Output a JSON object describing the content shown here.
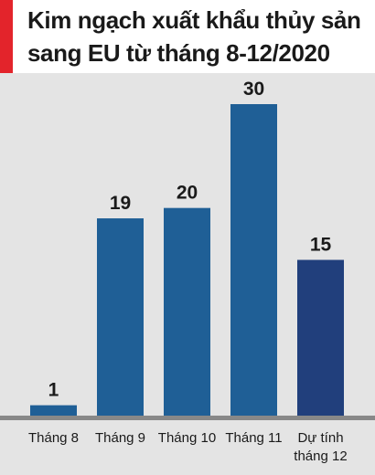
{
  "title": "Kim ngạch xuất khẩu thủy sản sang EU từ tháng 8-12/2020 (%)",
  "colors": {
    "accent": "#e3242b",
    "bar": "#1f5f96",
    "bar_forecast": "#213f7c",
    "plot_bg": "#e4e4e4",
    "baseline": "#888888"
  },
  "chart_data": {
    "type": "bar",
    "title": "Kim ngạch xuất khẩu thủy sản sang EU từ tháng 8-12/2020 (%)",
    "categories": [
      [
        "Tháng 8"
      ],
      [
        "Tháng 9"
      ],
      [
        "Tháng 10"
      ],
      [
        "Tháng 11"
      ],
      [
        "Dự tính",
        "tháng 12"
      ]
    ],
    "values": [
      1,
      19,
      20,
      30,
      15
    ],
    "data_labels": [
      "1",
      "19",
      "20",
      "30",
      "15"
    ],
    "forecast_index": 4,
    "ylim": [
      0,
      30
    ],
    "grid": false,
    "legend": "none",
    "xlabel": "",
    "ylabel": ""
  }
}
